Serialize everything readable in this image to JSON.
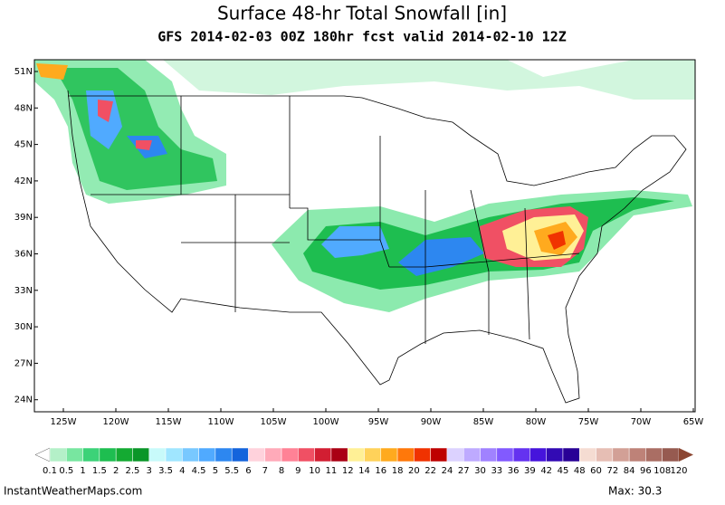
{
  "title": "Surface 48-hr Total Snowfall [in]",
  "subtitle": "GFS 2014-02-03 00Z 180hr fcst valid 2014-02-10 12Z",
  "lat_labels": [
    "51N",
    "48N",
    "45N",
    "42N",
    "39N",
    "36N",
    "33N",
    "30N",
    "27N",
    "24N"
  ],
  "lon_labels": [
    "125W",
    "120W",
    "115W",
    "110W",
    "105W",
    "100W",
    "95W",
    "90W",
    "85W",
    "80W",
    "75W",
    "70W",
    "65W"
  ],
  "colorbar": {
    "labels": [
      0.1,
      0.5,
      1,
      1.5,
      2,
      2.5,
      3,
      3.5,
      4,
      4.5,
      5,
      5.5,
      6,
      7,
      8,
      9,
      10,
      11,
      12,
      14,
      16,
      18,
      20,
      22,
      24,
      27,
      30,
      33,
      36,
      39,
      42,
      45,
      48,
      60,
      72,
      84,
      96,
      108,
      120
    ],
    "colors": [
      "#b4f0c8",
      "#78e6a0",
      "#3cd278",
      "#1ebe50",
      "#14aa32",
      "#0a9628",
      "#c8fafa",
      "#a0e6ff",
      "#78c8ff",
      "#50aaff",
      "#2d87f0",
      "#1464dc",
      "#ffd2dc",
      "#ffaab9",
      "#ff8296",
      "#f05064",
      "#d21e32",
      "#aa0014",
      "#fff096",
      "#ffd25a",
      "#ffaa1e",
      "#ff780a",
      "#f03200",
      "#be0000",
      "#dcd2ff",
      "#beaaff",
      "#a082ff",
      "#825aff",
      "#6432f0",
      "#4614dc",
      "#320ab4",
      "#280096",
      "#f5dcd2",
      "#e6beb4",
      "#d2a096",
      "#be8278",
      "#aa6e64",
      "#965a50"
    ],
    "under_color": "#ffffff",
    "over_color": "#8c4632"
  },
  "footer": {
    "site": "InstantWeatherMaps.com",
    "max": "Max:  30.3"
  }
}
